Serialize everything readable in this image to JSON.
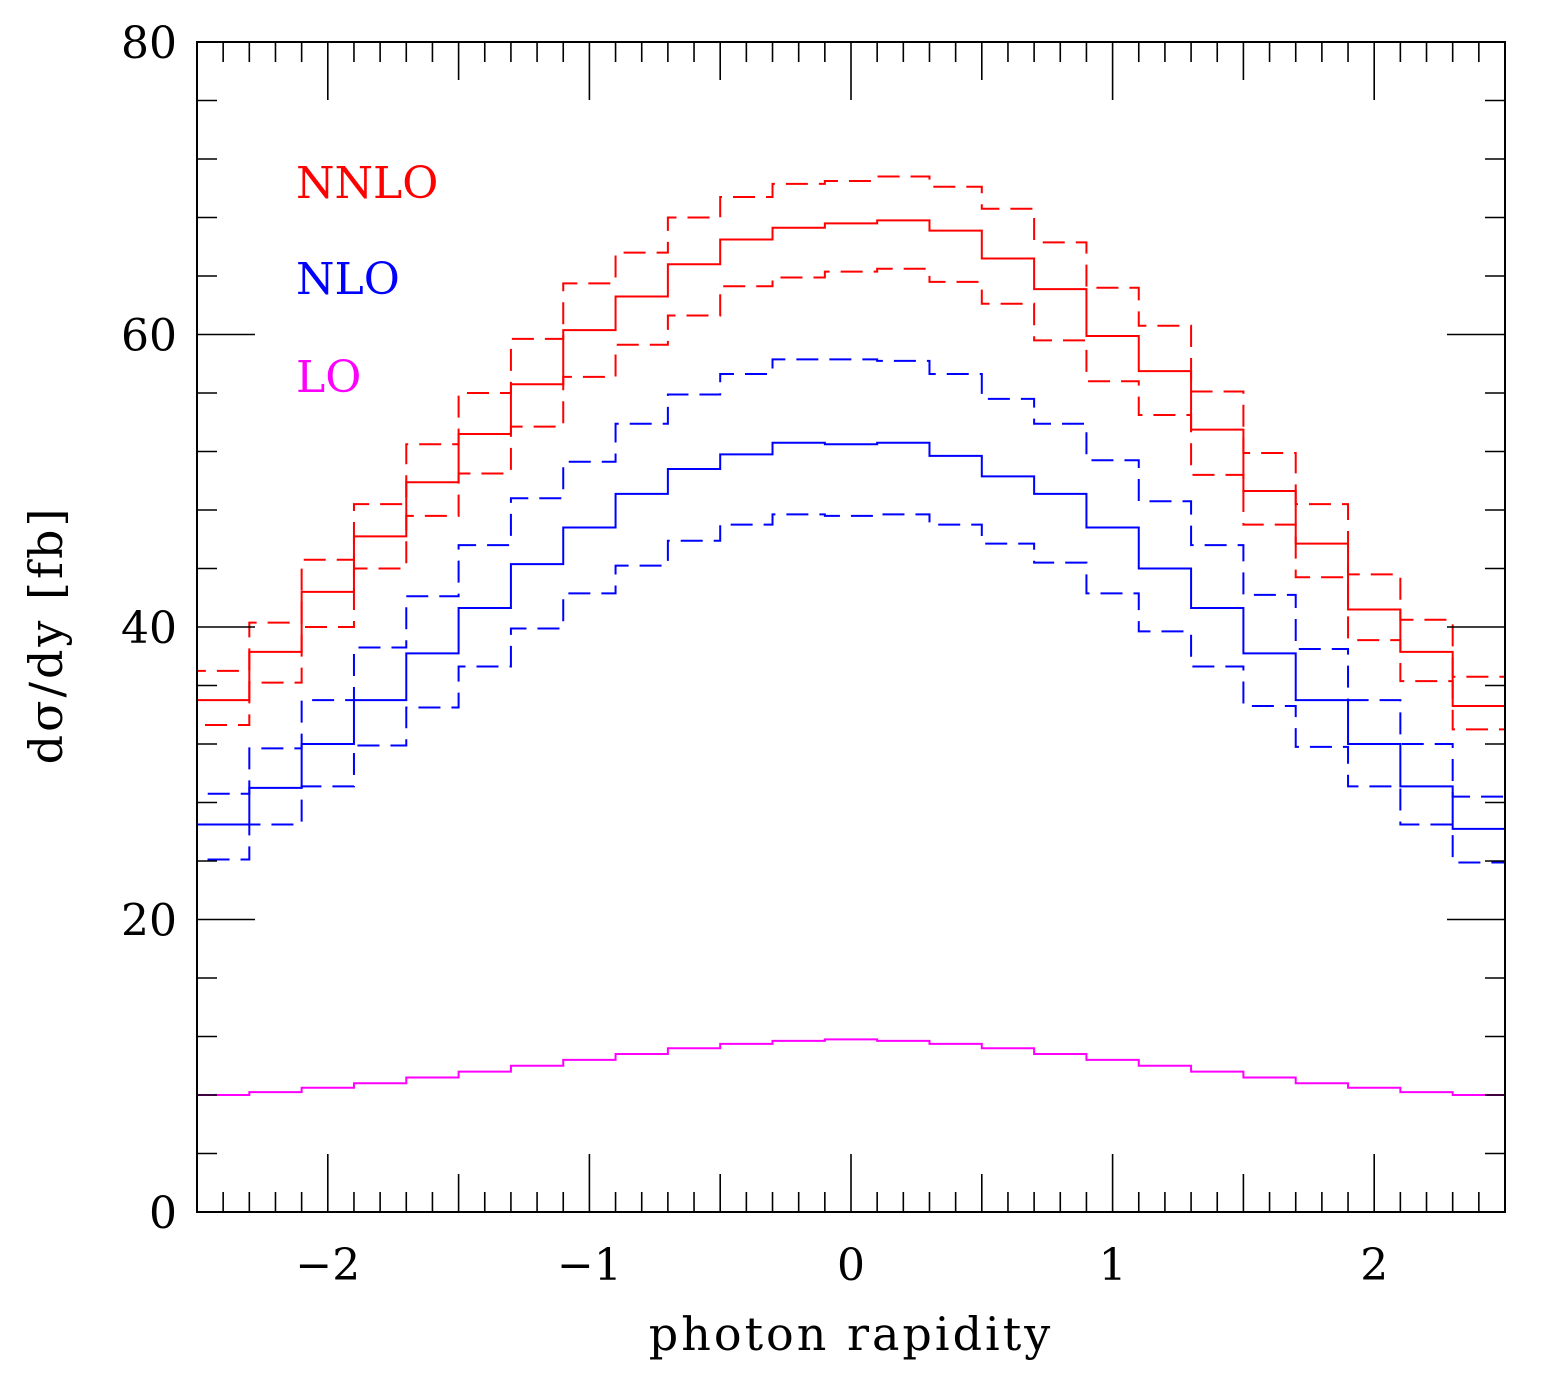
{
  "chart_data": {
    "type": "line",
    "step": true,
    "title": "",
    "xlabel": "photon rapidity",
    "ylabel": "dσ/dy  [fb]",
    "xlim": [
      -2.5,
      2.5
    ],
    "ylim": [
      0,
      80
    ],
    "x_ticks": [
      -2,
      -1,
      0,
      1,
      2
    ],
    "x_tick_labels": [
      "−2",
      "−1",
      "0",
      "1",
      "2"
    ],
    "y_ticks": [
      0,
      20,
      40,
      60,
      80
    ],
    "y_tick_labels": [
      "0",
      "20",
      "40",
      "60",
      "80"
    ],
    "grid": false,
    "legend_position": "top-left",
    "bin_edges": [
      -2.5,
      -2.3,
      -2.1,
      -1.9,
      -1.7,
      -1.5,
      -1.3,
      -1.1,
      -0.9,
      -0.7,
      -0.5,
      -0.3,
      -0.1,
      0.1,
      0.3,
      0.5,
      0.7,
      0.9,
      1.1,
      1.3,
      1.5,
      1.7,
      1.9,
      2.1,
      2.3,
      2.5
    ],
    "legend": [
      {
        "label": "NNLO",
        "color": "#ff0000"
      },
      {
        "label": "NLO",
        "color": "#0000ff"
      },
      {
        "label": "LO",
        "color": "#ff00ff"
      }
    ],
    "series": [
      {
        "id": "nnlo-upper",
        "color": "#ff0000",
        "style": "dashed",
        "values": [
          37.0,
          40.3,
          44.6,
          48.4,
          52.5,
          56.0,
          59.7,
          63.5,
          65.6,
          68.0,
          69.4,
          70.3,
          70.5,
          70.8,
          70.1,
          68.6,
          66.3,
          63.2,
          60.6,
          56.1,
          51.9,
          48.4,
          43.6,
          40.5,
          36.6
        ]
      },
      {
        "id": "nnlo-central",
        "color": "#ff0000",
        "style": "solid",
        "values": [
          35.0,
          38.3,
          42.4,
          46.2,
          49.9,
          53.2,
          56.6,
          60.3,
          62.6,
          64.8,
          66.5,
          67.3,
          67.6,
          67.8,
          67.1,
          65.2,
          63.1,
          59.9,
          57.5,
          53.5,
          49.3,
          45.7,
          41.2,
          38.3,
          34.6
        ]
      },
      {
        "id": "nnlo-lower",
        "color": "#ff0000",
        "style": "dashed",
        "values": [
          33.3,
          36.2,
          40.0,
          44.0,
          47.6,
          50.5,
          53.7,
          57.1,
          59.3,
          61.3,
          63.3,
          63.9,
          64.3,
          64.5,
          63.6,
          62.1,
          59.6,
          56.8,
          54.5,
          50.4,
          47.0,
          43.4,
          39.1,
          36.3,
          33.0
        ]
      },
      {
        "id": "nlo-upper",
        "color": "#0000ff",
        "style": "dashed",
        "values": [
          28.6,
          31.7,
          35.0,
          38.6,
          42.1,
          45.6,
          48.8,
          51.3,
          53.9,
          55.9,
          57.3,
          58.3,
          58.3,
          58.2,
          57.3,
          55.6,
          53.9,
          51.4,
          48.6,
          45.6,
          42.2,
          38.5,
          35.0,
          32.0,
          28.4
        ]
      },
      {
        "id": "nlo-central",
        "color": "#0000ff",
        "style": "solid",
        "values": [
          26.5,
          29.0,
          32.0,
          35.0,
          38.2,
          41.3,
          44.3,
          46.8,
          49.1,
          50.8,
          51.8,
          52.6,
          52.5,
          52.6,
          51.7,
          50.3,
          49.1,
          46.8,
          44.0,
          41.3,
          38.2,
          35.0,
          32.0,
          29.1,
          26.2
        ]
      },
      {
        "id": "nlo-lower",
        "color": "#0000ff",
        "style": "dashed",
        "values": [
          24.1,
          26.5,
          29.1,
          31.9,
          34.5,
          37.3,
          39.9,
          42.3,
          44.2,
          45.9,
          47.0,
          47.7,
          47.6,
          47.7,
          47.0,
          45.7,
          44.4,
          42.3,
          39.7,
          37.3,
          34.6,
          31.8,
          29.1,
          26.5,
          23.9
        ]
      },
      {
        "id": "lo",
        "color": "#ff00ff",
        "style": "solid",
        "values": [
          8.0,
          8.2,
          8.5,
          8.8,
          9.2,
          9.6,
          10.0,
          10.4,
          10.8,
          11.2,
          11.5,
          11.7,
          11.8,
          11.7,
          11.5,
          11.2,
          10.8,
          10.4,
          10.0,
          9.6,
          9.2,
          8.8,
          8.5,
          8.2,
          8.0
        ]
      }
    ]
  }
}
